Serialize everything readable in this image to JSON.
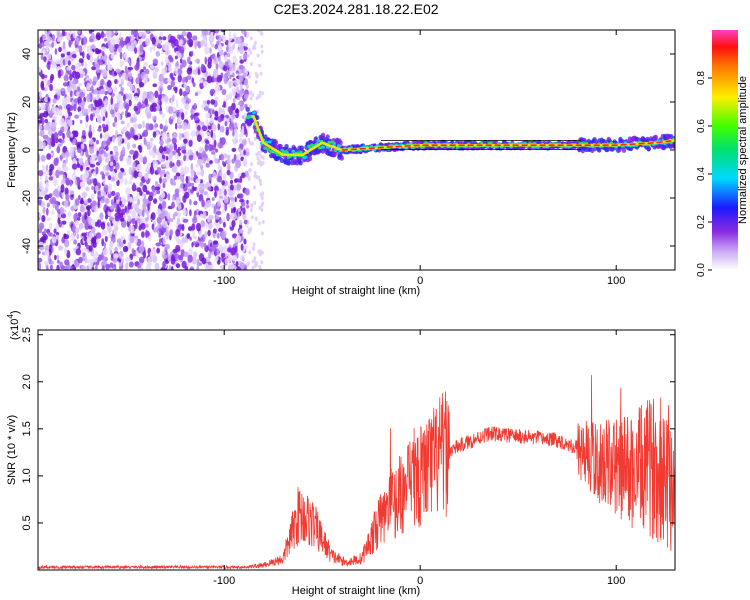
{
  "title": "C2E3.2024.281.18.22.E02",
  "colors": {
    "snr_line": "#f03a32",
    "track_core": "#ff2020",
    "noise": "#7a1ae0"
  },
  "chart_data": [
    {
      "type": "heatmap",
      "xlabel": "Height of straight line (km)",
      "ylabel": "Frequency (Hz)",
      "xlim": [
        -195,
        130
      ],
      "ylim": [
        -50,
        50
      ],
      "xticks": [
        -100,
        0,
        100
      ],
      "xtick_labels": [
        "-100",
        "0",
        "100"
      ],
      "yticks": [
        -40,
        -20,
        0,
        20,
        40
      ],
      "ytick_labels": [
        "-40",
        "-20",
        "0",
        "20",
        "40"
      ],
      "noise_region_x": [
        -195,
        -88
      ],
      "track": [
        {
          "x": -85,
          "y": 14
        },
        {
          "x": -80,
          "y": 3
        },
        {
          "x": -70,
          "y": -2
        },
        {
          "x": -60,
          "y": -2
        },
        {
          "x": -50,
          "y": 3
        },
        {
          "x": -40,
          "y": 0
        },
        {
          "x": -20,
          "y": 1
        },
        {
          "x": 0,
          "y": 2
        },
        {
          "x": 40,
          "y": 2
        },
        {
          "x": 80,
          "y": 2
        },
        {
          "x": 100,
          "y": 2
        },
        {
          "x": 120,
          "y": 3
        },
        {
          "x": 130,
          "y": 4
        }
      ],
      "colorbar": {
        "label": "Normalized spectral amplitude",
        "range": [
          0,
          1
        ],
        "ticks": [
          0.0,
          0.2,
          0.4,
          0.6,
          0.8
        ],
        "tick_labels": [
          "0.0",
          "0.2",
          "0.4",
          "0.6",
          "0.8"
        ]
      }
    },
    {
      "type": "line",
      "xlabel": "Height of straight line (km)",
      "ylabel": "SNR (10 * v/v)",
      "exponent_label": "(x10",
      "exponent_value": "4",
      "exponent_close": ")",
      "xlim": [
        -195,
        130
      ],
      "ylim": [
        0,
        2.55
      ],
      "xticks": [
        -100,
        0,
        100
      ],
      "xtick_labels": [
        "-100",
        "0",
        "100"
      ],
      "yticks": [
        0.5,
        1.0,
        1.5,
        2.0,
        2.5
      ],
      "ytick_labels": [
        "0.5",
        "1.0",
        "1.5",
        "2.0",
        "2.5"
      ],
      "envelope": [
        {
          "x": -195,
          "y": 0.03
        },
        {
          "x": -90,
          "y": 0.03
        },
        {
          "x": -80,
          "y": 0.05
        },
        {
          "x": -70,
          "y": 0.12
        },
        {
          "x": -62,
          "y": 0.6
        },
        {
          "x": -55,
          "y": 0.5
        },
        {
          "x": -45,
          "y": 0.15
        },
        {
          "x": -38,
          "y": 0.08
        },
        {
          "x": -30,
          "y": 0.12
        },
        {
          "x": -20,
          "y": 0.55
        },
        {
          "x": -10,
          "y": 0.8
        },
        {
          "x": 0,
          "y": 1.0
        },
        {
          "x": 10,
          "y": 1.2
        },
        {
          "x": 20,
          "y": 1.32
        },
        {
          "x": 35,
          "y": 1.45
        },
        {
          "x": 50,
          "y": 1.42
        },
        {
          "x": 70,
          "y": 1.38
        },
        {
          "x": 80,
          "y": 1.3
        },
        {
          "x": 90,
          "y": 1.15
        },
        {
          "x": 100,
          "y": 1.1
        },
        {
          "x": 110,
          "y": 1.05
        },
        {
          "x": 120,
          "y": 1.1
        },
        {
          "x": 130,
          "y": 1.0
        }
      ]
    }
  ]
}
